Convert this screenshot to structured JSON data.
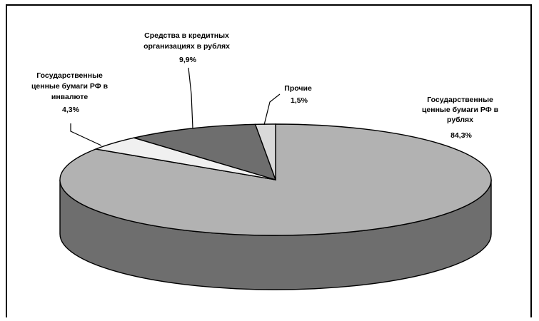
{
  "chart_data": {
    "type": "pie",
    "style": "3d",
    "title": "",
    "slices": [
      {
        "label": "Государственные ценные бумаги РФ в рублях",
        "label_lines": [
          "Государственные",
          "ценные бумаги РФ в",
          "рублях"
        ],
        "value": 84.3,
        "value_label": "84,3%",
        "color": "#b2b2b2"
      },
      {
        "label": "Государственные ценные бумаги РФ в инвалюте",
        "label_lines": [
          "Государственные",
          "ценные бумаги РФ в",
          "инвалюте"
        ],
        "value": 4.3,
        "value_label": "4,3%",
        "color": "#f0f0f0"
      },
      {
        "label": "Средства в кредитных организациях в рублях",
        "label_lines": [
          "Средства в кредитных",
          "организациях в рублях"
        ],
        "value": 9.9,
        "value_label": "9,9%",
        "color": "#6e6e6e"
      },
      {
        "label": "Прочие",
        "label_lines": [
          "Прочие"
        ],
        "value": 1.5,
        "value_label": "1,5%",
        "color": "#d9d9d9"
      }
    ],
    "side_color": "#6e6e6e",
    "legend": "none"
  }
}
